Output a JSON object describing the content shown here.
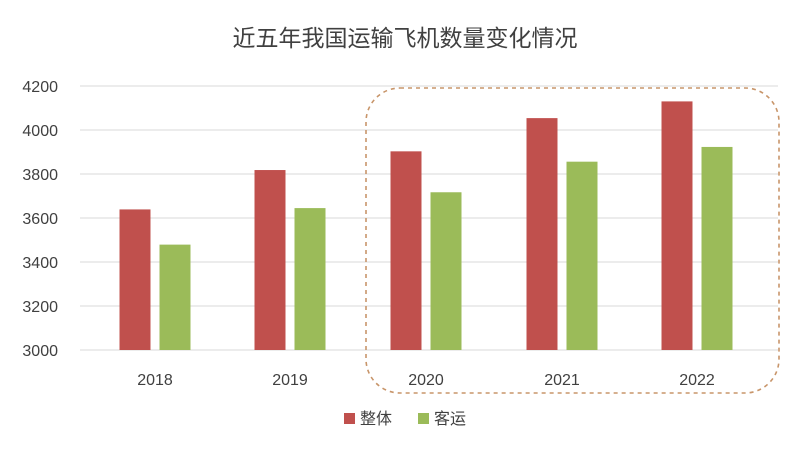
{
  "chart_data": {
    "type": "bar",
    "title": "近五年我国运输飞机数量变化情况",
    "categories": [
      "2018",
      "2019",
      "2020",
      "2021",
      "2022"
    ],
    "series": [
      {
        "name": "整体",
        "color": "#c0504d",
        "values": [
          3639,
          3818,
          3903,
          4054,
          4130
        ]
      },
      {
        "name": "客运",
        "color": "#9bbb59",
        "values": [
          3479,
          3645,
          3717,
          3856,
          3923
        ]
      }
    ],
    "ylim": [
      3000,
      4200
    ],
    "yticks": [
      "3000",
      "3200",
      "3400",
      "3600",
      "3800",
      "4000",
      "4200"
    ],
    "grid": true,
    "gridline_color": "#d9d9d9",
    "legend_position": "bottom",
    "highlight": {
      "from_category": "2020",
      "to_category": "2022",
      "style": "dashed-rounded",
      "color": "#c8956a"
    }
  }
}
